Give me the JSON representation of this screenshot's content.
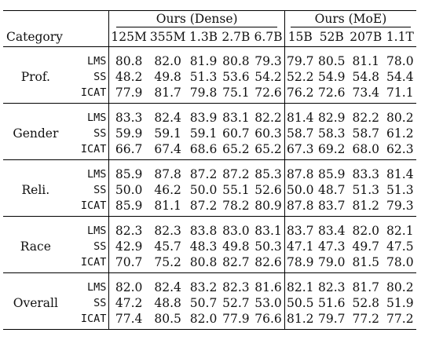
{
  "header": {
    "category_label": "Category",
    "dense_group": "Ours (Dense)",
    "moe_group": "Ours (MoE)",
    "dense_sizes": [
      "125M",
      "355M",
      "1.3B",
      "2.7B",
      "6.7B"
    ],
    "moe_sizes": [
      "15B",
      "52B",
      "207B",
      "1.1T"
    ]
  },
  "groups": [
    {
      "category": "Prof.",
      "rows": [
        {
          "metric": "LMS",
          "dense": [
            "80.8",
            "82.0",
            "81.9",
            "80.8",
            "79.3"
          ],
          "moe": [
            "79.7",
            "80.5",
            "81.1",
            "78.0"
          ]
        },
        {
          "metric": "SS",
          "dense": [
            "48.2",
            "49.8",
            "51.3",
            "53.6",
            "54.2"
          ],
          "moe": [
            "52.2",
            "54.9",
            "54.8",
            "54.4"
          ]
        },
        {
          "metric": "ICAT",
          "dense": [
            "77.9",
            "81.7",
            "79.8",
            "75.1",
            "72.6"
          ],
          "moe": [
            "76.2",
            "72.6",
            "73.4",
            "71.1"
          ]
        }
      ]
    },
    {
      "category": "Gender",
      "rows": [
        {
          "metric": "LMS",
          "dense": [
            "83.3",
            "82.4",
            "83.9",
            "83.1",
            "82.2"
          ],
          "moe": [
            "81.4",
            "82.9",
            "82.2",
            "80.2"
          ]
        },
        {
          "metric": "SS",
          "dense": [
            "59.9",
            "59.1",
            "59.1",
            "60.7",
            "60.3"
          ],
          "moe": [
            "58.7",
            "58.3",
            "58.7",
            "61.2"
          ]
        },
        {
          "metric": "ICAT",
          "dense": [
            "66.7",
            "67.4",
            "68.6",
            "65.2",
            "65.2"
          ],
          "moe": [
            "67.3",
            "69.2",
            "68.0",
            "62.3"
          ]
        }
      ]
    },
    {
      "category": "Reli.",
      "rows": [
        {
          "metric": "LMS",
          "dense": [
            "85.9",
            "87.8",
            "87.2",
            "87.2",
            "85.3"
          ],
          "moe": [
            "87.8",
            "85.9",
            "83.3",
            "81.4"
          ]
        },
        {
          "metric": "SS",
          "dense": [
            "50.0",
            "46.2",
            "50.0",
            "55.1",
            "52.6"
          ],
          "moe": [
            "50.0",
            "48.7",
            "51.3",
            "51.3"
          ]
        },
        {
          "metric": "ICAT",
          "dense": [
            "85.9",
            "81.1",
            "87.2",
            "78.2",
            "80.9"
          ],
          "moe": [
            "87.8",
            "83.7",
            "81.2",
            "79.3"
          ]
        }
      ]
    },
    {
      "category": "Race",
      "rows": [
        {
          "metric": "LMS",
          "dense": [
            "82.3",
            "82.3",
            "83.8",
            "83.0",
            "83.1"
          ],
          "moe": [
            "83.7",
            "83.4",
            "82.0",
            "82.1"
          ]
        },
        {
          "metric": "SS",
          "dense": [
            "42.9",
            "45.7",
            "48.3",
            "49.8",
            "50.3"
          ],
          "moe": [
            "47.1",
            "47.3",
            "49.7",
            "47.5"
          ]
        },
        {
          "metric": "ICAT",
          "dense": [
            "70.7",
            "75.2",
            "80.8",
            "82.7",
            "82.6"
          ],
          "moe": [
            "78.9",
            "79.0",
            "81.5",
            "78.0"
          ]
        }
      ]
    },
    {
      "category": "Overall",
      "rows": [
        {
          "metric": "LMS",
          "dense": [
            "82.0",
            "82.4",
            "83.2",
            "82.3",
            "81.6"
          ],
          "moe": [
            "82.1",
            "82.3",
            "81.7",
            "80.2"
          ]
        },
        {
          "metric": "SS",
          "dense": [
            "47.2",
            "48.8",
            "50.7",
            "52.7",
            "53.0"
          ],
          "moe": [
            "50.5",
            "51.6",
            "52.8",
            "51.9"
          ]
        },
        {
          "metric": "ICAT",
          "dense": [
            "77.4",
            "80.5",
            "82.0",
            "77.9",
            "76.6"
          ],
          "moe": [
            "81.2",
            "79.7",
            "77.2",
            "77.2"
          ]
        }
      ]
    }
  ]
}
